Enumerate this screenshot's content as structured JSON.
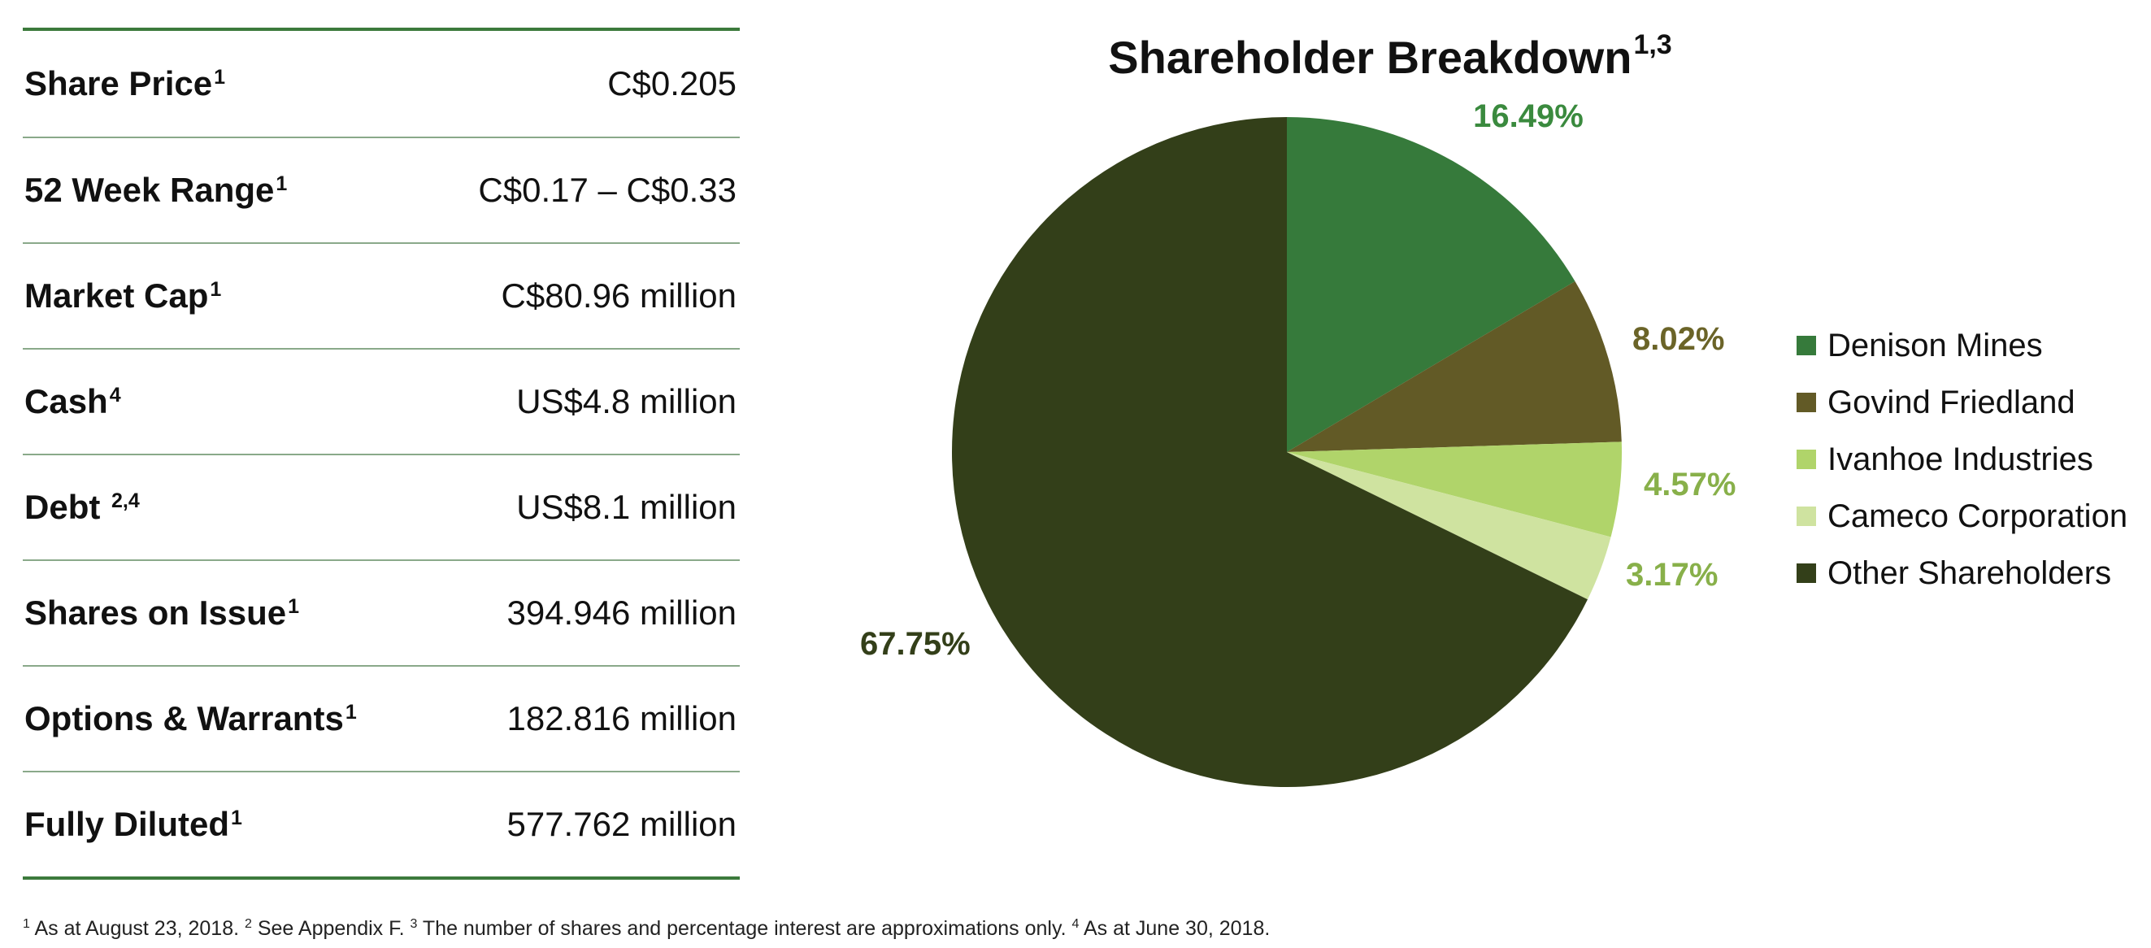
{
  "stats": {
    "rows": [
      {
        "label": "Share Price",
        "note": "1",
        "value": "C$0.205"
      },
      {
        "label": "52 Week Range",
        "note": "1",
        "value": "C$0.17 – C$0.33"
      },
      {
        "label": "Market Cap",
        "note": "1",
        "value": "C$80.96 million"
      },
      {
        "label": "Cash",
        "note": "4",
        "value": "US$4.8 million"
      },
      {
        "label": "Debt ",
        "note": "2,4",
        "value": "US$8.1 million"
      },
      {
        "label": "Shares on Issue",
        "note": "1",
        "value": "394.946 million"
      },
      {
        "label": "Options & Warrants",
        "note": "1",
        "value": "182.816 million"
      },
      {
        "label": "Fully Diluted",
        "note": "1",
        "value": "577.762 million"
      }
    ]
  },
  "chart_data": {
    "type": "pie",
    "title": "Shareholder Breakdown",
    "title_note": "1,3",
    "legend_position": "right",
    "slices": [
      {
        "name": "Denison Mines",
        "value": 16.49,
        "label": "16.49%",
        "color": "#367a3b",
        "label_color": "#3a8a3e"
      },
      {
        "name": "Govind Friedland",
        "value": 8.02,
        "label": "8.02%",
        "color": "#625a26",
        "label_color": "#6b6428"
      },
      {
        "name": "Ivanhoe Industries",
        "value": 4.57,
        "label": "4.57%",
        "color": "#b0d46a",
        "label_color": "#88b04a"
      },
      {
        "name": "Cameco Corporation",
        "value": 3.17,
        "label": "3.17%",
        "color": "#cfe3a0",
        "label_color": "#88b04a"
      },
      {
        "name": "Other Shareholders",
        "value": 67.75,
        "label": "67.75%",
        "color": "#333f19",
        "label_color": "#333f19"
      }
    ]
  },
  "footnote": {
    "n1": "1",
    "t1": " As at August 23, 2018. ",
    "n2": "2",
    "t2": " See Appendix F. ",
    "n3": "3",
    "t3": " The number of shares and percentage interest are approximations only. ",
    "n4": "4",
    "t4": " As at June 30, 2018."
  }
}
